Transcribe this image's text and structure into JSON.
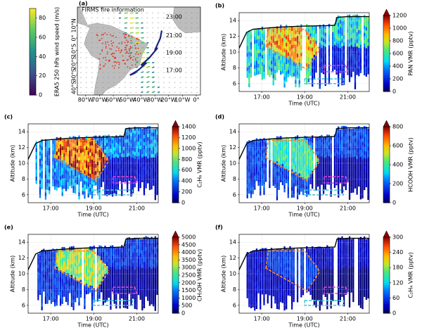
{
  "chart_data": [
    {
      "type": "map",
      "panel_label": "(a)",
      "annotation": "FIRMS fire information",
      "time_labels": [
        "23:00",
        "21:00",
        "19:00",
        "17:00"
      ],
      "xlim": [
        -86,
        3
      ],
      "ylim": [
        -46,
        25
      ],
      "xticks": [
        {
          "value": -80,
          "label": "80°W"
        },
        {
          "value": -70,
          "label": "70°W"
        },
        {
          "value": -60,
          "label": "60°W"
        },
        {
          "value": -50,
          "label": "50°W"
        },
        {
          "value": -40,
          "label": "40°W"
        },
        {
          "value": -30,
          "label": "30°W"
        },
        {
          "value": -20,
          "label": "20°W"
        },
        {
          "value": -10,
          "label": "10°W"
        },
        {
          "value": 0,
          "label": "0°"
        }
      ],
      "yticks": [
        {
          "value": 10,
          "label": "10°N"
        },
        {
          "value": 0,
          "label": "0°"
        },
        {
          "value": -10,
          "label": "10°S"
        },
        {
          "value": -20,
          "label": "20°S"
        },
        {
          "value": -30,
          "label": "30°S"
        },
        {
          "value": -40,
          "label": "40°S"
        }
      ],
      "colorbar": {
        "label": "ERA5 250 hPa wind speed (m/s)",
        "lim": [
          0,
          90
        ],
        "ticks": [
          0,
          20,
          40,
          60,
          80
        ],
        "colormap": "viridis"
      }
    },
    {
      "type": "curtain",
      "panel_label": "(b)",
      "xlabel": "Time (UTC)",
      "ylabel": "Altitude (km)",
      "grid": true,
      "xlim": [
        15.95,
        22.0
      ],
      "xticks": [
        {
          "value": 17,
          "label": "17:00"
        },
        {
          "value": 19,
          "label": "19:00"
        },
        {
          "value": 21,
          "label": "21:00"
        }
      ],
      "ylim": [
        5,
        15
      ],
      "yticks": [
        6,
        8,
        10,
        12,
        14
      ],
      "flight_track": {
        "color": "#000000",
        "x": [
          15.95,
          16.3,
          16.6,
          17.0,
          18.0,
          19.0,
          20.0,
          20.4,
          20.5,
          21.0,
          22.0
        ],
        "y": [
          10.5,
          12.5,
          12.9,
          13.0,
          13.2,
          13.3,
          13.35,
          13.4,
          14.4,
          14.5,
          14.5
        ]
      },
      "colorbar": {
        "label": "PAN VMR (pptv)",
        "lim": [
          0,
          1200
        ],
        "ticks": [
          0,
          200,
          400,
          600,
          800,
          1000,
          1200
        ],
        "colormap": "jet",
        "extend": "max"
      }
    },
    {
      "type": "curtain",
      "panel_label": "(c)",
      "xlabel": "Time (UTC)",
      "ylabel": "Altitude (km)",
      "grid": true,
      "xlim": [
        15.95,
        22.0
      ],
      "xticks": [
        {
          "value": 17,
          "label": "17:00"
        },
        {
          "value": 19,
          "label": "19:00"
        },
        {
          "value": 21,
          "label": "21:00"
        }
      ],
      "ylim": [
        5,
        15
      ],
      "yticks": [
        6,
        8,
        10,
        12,
        14
      ],
      "flight_track": {
        "color": "#000000",
        "x": [
          15.95,
          16.3,
          16.6,
          17.0,
          18.0,
          19.0,
          20.0,
          20.4,
          20.5,
          21.0,
          22.0
        ],
        "y": [
          10.5,
          12.5,
          12.9,
          13.0,
          13.2,
          13.3,
          13.35,
          13.4,
          14.4,
          14.5,
          14.5
        ]
      },
      "colorbar": {
        "label": "C₂H₆ VMR (pptv)",
        "lim": [
          0,
          1400
        ],
        "ticks": [
          0,
          200,
          400,
          600,
          800,
          1000,
          1200,
          1400
        ],
        "colormap": "jet",
        "extend": "max"
      }
    },
    {
      "type": "curtain",
      "panel_label": "(d)",
      "xlabel": "Time (UTC)",
      "ylabel": "Altitude (km)",
      "grid": true,
      "xlim": [
        15.95,
        22.0
      ],
      "xticks": [
        {
          "value": 17,
          "label": "17:00"
        },
        {
          "value": 19,
          "label": "19:00"
        },
        {
          "value": 21,
          "label": "21:00"
        }
      ],
      "ylim": [
        5,
        15
      ],
      "yticks": [
        6,
        8,
        10,
        12,
        14
      ],
      "flight_track": {
        "color": "#000000",
        "x": [
          15.95,
          16.3,
          16.6,
          17.0,
          18.0,
          19.0,
          20.0,
          20.4,
          20.5,
          21.0,
          22.0
        ],
        "y": [
          10.5,
          12.5,
          12.9,
          13.0,
          13.2,
          13.3,
          13.35,
          13.4,
          14.4,
          14.5,
          14.5
        ]
      },
      "colorbar": {
        "label": "HCOOH VMR (pptv)",
        "lim": [
          0,
          800
        ],
        "ticks": [
          0,
          200,
          400,
          600,
          800
        ],
        "colormap": "jet",
        "extend": "max"
      }
    },
    {
      "type": "curtain",
      "panel_label": "(e)",
      "xlabel": "Time (UTC)",
      "ylabel": "Altitude (km)",
      "grid": true,
      "xlim": [
        15.95,
        22.0
      ],
      "xticks": [
        {
          "value": 17,
          "label": "17:00"
        },
        {
          "value": 19,
          "label": "19:00"
        },
        {
          "value": 21,
          "label": "21:00"
        }
      ],
      "ylim": [
        5,
        15
      ],
      "yticks": [
        6,
        8,
        10,
        12,
        14
      ],
      "flight_track": {
        "color": "#000000",
        "x": [
          15.95,
          16.3,
          16.6,
          17.0,
          18.0,
          19.0,
          20.0,
          20.4,
          20.5,
          21.0,
          22.0
        ],
        "y": [
          10.5,
          12.5,
          12.9,
          13.0,
          13.2,
          13.3,
          13.35,
          13.4,
          14.4,
          14.5,
          14.5
        ]
      },
      "colorbar": {
        "label": "CH₃OH VMR (pptv)",
        "lim": [
          0,
          5000
        ],
        "ticks": [
          0,
          500,
          1000,
          1500,
          2000,
          2500,
          3000,
          3500,
          4000,
          4500,
          5000
        ],
        "colormap": "jet",
        "extend": "max"
      }
    },
    {
      "type": "curtain",
      "panel_label": "(f)",
      "xlabel": "Time (UTC)",
      "ylabel": "Altitude (km)",
      "grid": true,
      "xlim": [
        15.95,
        22.0
      ],
      "xticks": [
        {
          "value": 17,
          "label": "17:00"
        },
        {
          "value": 19,
          "label": "19:00"
        },
        {
          "value": 21,
          "label": "21:00"
        }
      ],
      "ylim": [
        5,
        15
      ],
      "yticks": [
        6,
        8,
        10,
        12,
        14
      ],
      "flight_track": {
        "color": "#000000",
        "x": [
          15.95,
          16.3,
          16.6,
          17.0,
          18.0,
          19.0,
          20.0,
          20.4,
          20.5,
          21.0,
          22.0
        ],
        "y": [
          10.5,
          12.5,
          12.9,
          13.0,
          13.2,
          13.3,
          13.35,
          13.4,
          14.4,
          14.5,
          14.5
        ]
      },
      "colorbar": {
        "label": "C₂H₄ VMR (pptv)",
        "lim": [
          0,
          300
        ],
        "ticks": [
          0,
          60,
          120,
          180,
          240,
          300
        ],
        "colormap": "jet",
        "extend": "max"
      }
    }
  ]
}
